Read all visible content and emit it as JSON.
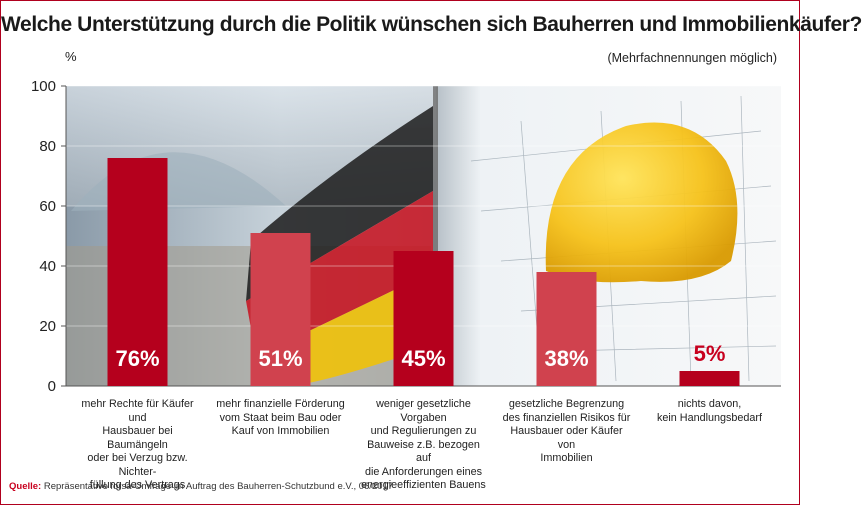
{
  "title": "Welche Unterstützung durch die Politik wünschen sich Bauherren und Immobilienkäufer?",
  "subtitle": "(Mehrfachnennungen möglich)",
  "unit": "%",
  "source_label": "Quelle:",
  "source_text": "Repräsentative forsa-Umfrage im Auftrag des Bauherren-Schutzbund e.V., 06/2017",
  "colors": {
    "dark_red": "#b5001d",
    "light_red": "#d0424e",
    "accent": "#c8001e"
  },
  "chart_data": {
    "type": "bar",
    "ylim": [
      0,
      100
    ],
    "yticks": [
      "0",
      "20",
      "40",
      "60",
      "80",
      "100"
    ],
    "categories": [
      "mehr Rechte für Käufer und Hausbauer bei Baumängeln oder bei Verzug bzw. Nichterfüllung des Vertrags",
      "mehr finanzielle Förderung vom Staat beim Bau oder Kauf von Immobilien",
      "weniger gesetzliche Vorgaben und Regulierungen zu Bauweise z.B. bezogen auf die Anforderungen eines energieeffizienten Bauens",
      "gesetzliche Begrenzung des finanziellen Risikos für Hausbauer oder Käufer von Immobilien",
      "nichts davon, kein Handlungsbedarf"
    ],
    "category_lines": [
      [
        "mehr Rechte für Käufer und",
        "Hausbauer bei Baumängeln",
        "oder bei Verzug bzw. Nichter-",
        "füllung des Vertrags"
      ],
      [
        "mehr finanzielle Förderung",
        "vom Staat beim Bau oder",
        "Kauf von Immobilien"
      ],
      [
        "weniger gesetzliche Vorgaben",
        "und Regulierungen zu",
        "Bauweise z.B. bezogen auf",
        "die Anforderungen eines",
        "energieeffizienten Bauens"
      ],
      [
        "gesetzliche Begrenzung",
        "des finanziellen Risikos für",
        "Hausbauer oder Käufer von",
        "Immobilien"
      ],
      [
        "nichts davon,",
        "kein Handlungsbedarf"
      ]
    ],
    "values": [
      76,
      51,
      45,
      38,
      5
    ],
    "value_labels": [
      "76%",
      "51%",
      "45%",
      "38%",
      "5%"
    ]
  }
}
